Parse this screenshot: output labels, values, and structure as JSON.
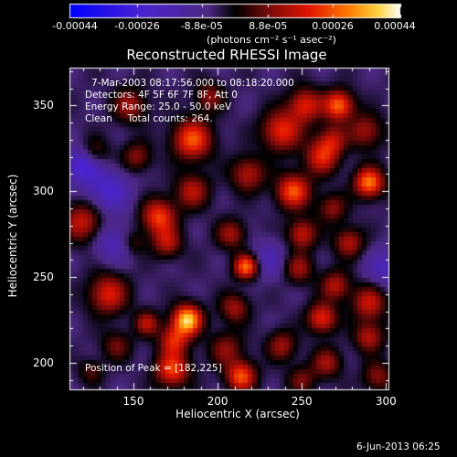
{
  "chart_data": {
    "type": "heatmap",
    "title": "Reconstructed RHESSI Image",
    "xlabel": "Heliocentric X (arcsec)",
    "ylabel": "Heliocentric Y (arcsec)",
    "xlim": [
      112,
      302
    ],
    "ylim": [
      184,
      372
    ],
    "xticks": [
      "150",
      "200",
      "250",
      "300"
    ],
    "xtick_values": [
      150,
      200,
      250,
      300
    ],
    "yticks": [
      "200",
      "250",
      "300",
      "350"
    ],
    "ytick_values": [
      200,
      250,
      300,
      350
    ],
    "colorbar": {
      "min": -0.00044,
      "max": 0.00044,
      "tick_labels": [
        "-0.00044",
        "-0.00026",
        "-8.8e-05",
        "8.8e-05",
        "0.00026",
        "0.00044"
      ],
      "tick_values": [
        -0.00044,
        -0.00026,
        -8.8e-05,
        8.8e-05,
        0.00026,
        0.00044
      ],
      "unit": "(photons cm⁻² s⁻¹ asec⁻²)"
    },
    "info_lines": [
      "7-Mar-2003 08:17:56.000 to 08:18:20.000",
      "Detectors: 4F 5F 6F 7F 8F, Att 0",
      "Energy Range: 25.0 - 50.0 keV",
      "Clean     Total counts: 264."
    ],
    "peak_label": "Position of Peak = [182,225]",
    "peak": [
      182,
      225
    ],
    "sources": [
      {
        "x": 182,
        "y": 225,
        "amp": 1.0,
        "sigma": 6
      },
      {
        "x": 174,
        "y": 213,
        "amp": 0.55,
        "sigma": 6
      },
      {
        "x": 173,
        "y": 196,
        "amp": 0.65,
        "sigma": 7
      },
      {
        "x": 214,
        "y": 192,
        "amp": 0.7,
        "sigma": 6
      },
      {
        "x": 205,
        "y": 208,
        "amp": 0.35,
        "sigma": 7
      },
      {
        "x": 158,
        "y": 223,
        "amp": 0.45,
        "sigma": 5
      },
      {
        "x": 135,
        "y": 240,
        "amp": 0.55,
        "sigma": 8
      },
      {
        "x": 120,
        "y": 282,
        "amp": 0.5,
        "sigma": 8
      },
      {
        "x": 127,
        "y": 322,
        "amp": 0.3,
        "sigma": 6
      },
      {
        "x": 148,
        "y": 350,
        "amp": 0.4,
        "sigma": 7
      },
      {
        "x": 152,
        "y": 320,
        "amp": 0.35,
        "sigma": 6
      },
      {
        "x": 165,
        "y": 285,
        "amp": 0.65,
        "sigma": 7
      },
      {
        "x": 170,
        "y": 270,
        "amp": 0.45,
        "sigma": 6
      },
      {
        "x": 185,
        "y": 300,
        "amp": 0.45,
        "sigma": 7
      },
      {
        "x": 185,
        "y": 330,
        "amp": 0.7,
        "sigma": 8
      },
      {
        "x": 195,
        "y": 355,
        "amp": 0.35,
        "sigma": 6
      },
      {
        "x": 208,
        "y": 275,
        "amp": 0.4,
        "sigma": 6
      },
      {
        "x": 217,
        "y": 256,
        "amp": 0.8,
        "sigma": 5
      },
      {
        "x": 210,
        "y": 232,
        "amp": 0.4,
        "sigma": 6
      },
      {
        "x": 218,
        "y": 310,
        "amp": 0.45,
        "sigma": 7
      },
      {
        "x": 238,
        "y": 335,
        "amp": 0.6,
        "sigma": 8
      },
      {
        "x": 245,
        "y": 300,
        "amp": 0.7,
        "sigma": 7
      },
      {
        "x": 250,
        "y": 275,
        "amp": 0.5,
        "sigma": 6
      },
      {
        "x": 252,
        "y": 350,
        "amp": 0.55,
        "sigma": 7
      },
      {
        "x": 268,
        "y": 330,
        "amp": 0.4,
        "sigma": 6
      },
      {
        "x": 272,
        "y": 350,
        "amp": 0.75,
        "sigma": 6
      },
      {
        "x": 262,
        "y": 320,
        "amp": 0.55,
        "sigma": 7
      },
      {
        "x": 290,
        "y": 305,
        "amp": 0.8,
        "sigma": 6
      },
      {
        "x": 288,
        "y": 335,
        "amp": 0.4,
        "sigma": 7
      },
      {
        "x": 268,
        "y": 290,
        "amp": 0.35,
        "sigma": 6
      },
      {
        "x": 278,
        "y": 270,
        "amp": 0.45,
        "sigma": 6
      },
      {
        "x": 248,
        "y": 255,
        "amp": 0.4,
        "sigma": 6
      },
      {
        "x": 270,
        "y": 245,
        "amp": 0.45,
        "sigma": 6
      },
      {
        "x": 290,
        "y": 235,
        "amp": 0.5,
        "sigma": 7
      },
      {
        "x": 262,
        "y": 226,
        "amp": 0.6,
        "sigma": 6
      },
      {
        "x": 238,
        "y": 210,
        "amp": 0.4,
        "sigma": 6
      },
      {
        "x": 290,
        "y": 215,
        "amp": 0.45,
        "sigma": 6
      },
      {
        "x": 265,
        "y": 200,
        "amp": 0.4,
        "sigma": 6
      },
      {
        "x": 250,
        "y": 190,
        "amp": 0.3,
        "sigma": 6
      },
      {
        "x": 295,
        "y": 192,
        "amp": 0.35,
        "sigma": 6
      },
      {
        "x": 140,
        "y": 210,
        "amp": 0.3,
        "sigma": 6
      },
      {
        "x": 125,
        "y": 195,
        "amp": 0.25,
        "sigma": 5
      },
      {
        "x": 150,
        "y": 270,
        "amp": 0.25,
        "sigma": 5
      },
      {
        "x": 135,
        "y": 300,
        "amp": -0.4,
        "sigma": 9
      },
      {
        "x": 120,
        "y": 315,
        "amp": -0.5,
        "sigma": 7
      },
      {
        "x": 138,
        "y": 270,
        "amp": -0.3,
        "sigma": 8
      },
      {
        "x": 300,
        "y": 255,
        "amp": -0.3,
        "sigma": 8
      },
      {
        "x": 230,
        "y": 260,
        "amp": -0.25,
        "sigma": 8
      }
    ]
  },
  "footer": "6-Jun-2013 06:25"
}
